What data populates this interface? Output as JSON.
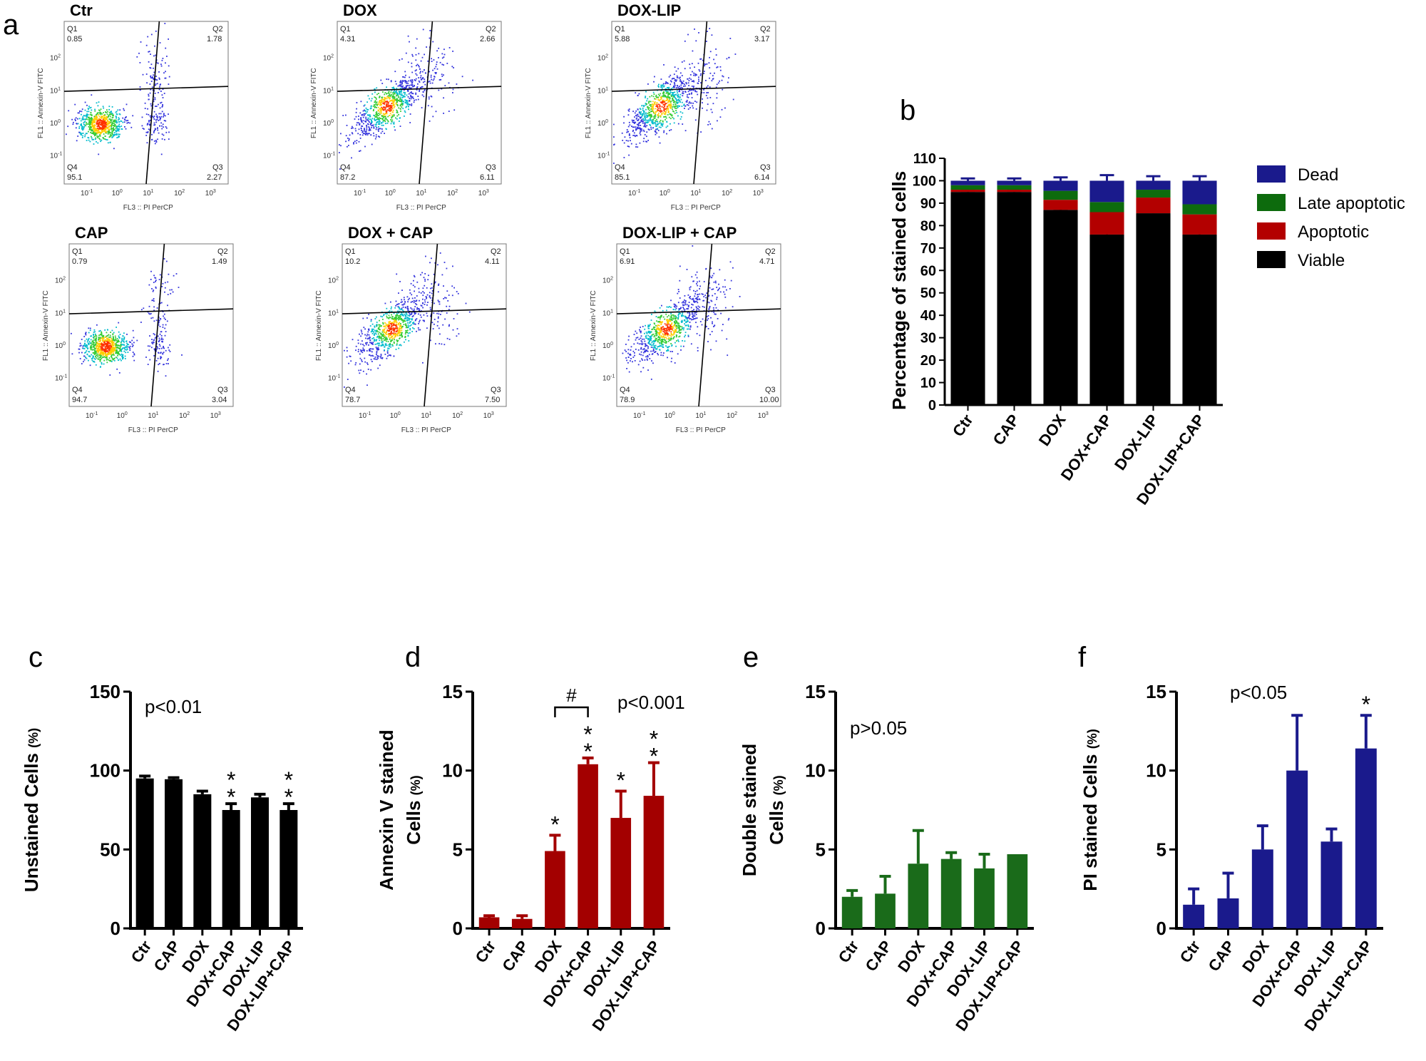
{
  "panel_letters": {
    "a": "a",
    "b": "b",
    "c": "c",
    "d": "d",
    "e": "e",
    "f": "f"
  },
  "flow_common": {
    "x_axis_label": "FL3 :: PI PerCP",
    "y_axis_label": "FL1 :: Annexin-V FITC",
    "x_ticks": [
      "10-1",
      "100",
      "101",
      "102",
      "103"
    ],
    "y_ticks": [
      "102",
      "101",
      "100",
      "10-1"
    ]
  },
  "flow_panels": [
    {
      "title": "Ctr",
      "q1_label": "Q1",
      "q1": "0.85",
      "q2_label": "Q2",
      "q2": "1.78",
      "q3_label": "Q3",
      "q3": "2.27",
      "q4_label": "Q4",
      "q4": "95.1",
      "pattern": "control"
    },
    {
      "title": "DOX",
      "q1_label": "Q1",
      "q1": "4.31",
      "q2_label": "Q2",
      "q2": "2.66",
      "q3_label": "Q3",
      "q3": "6.11",
      "q4_label": "Q4",
      "q4": "87.2",
      "pattern": "treated"
    },
    {
      "title": "DOX-LIP",
      "q1_label": "Q1",
      "q1": "5.88",
      "q2_label": "Q2",
      "q2": "3.17",
      "q3_label": "Q3",
      "q3": "6.14",
      "q4_label": "Q4",
      "q4": "85.1",
      "pattern": "treated"
    },
    {
      "title": "CAP",
      "q1_label": "Q1",
      "q1": "0.79",
      "q2_label": "Q2",
      "q2": "1.49",
      "q3_label": "Q3",
      "q3": "3.04",
      "q4_label": "Q4",
      "q4": "94.7",
      "pattern": "control"
    },
    {
      "title": "DOX + CAP",
      "q1_label": "Q1",
      "q1": "10.2",
      "q2_label": "Q2",
      "q2": "4.11",
      "q3_label": "Q3",
      "q3": "7.50",
      "q4_label": "Q4",
      "q4": "78.7",
      "pattern": "treated"
    },
    {
      "title": "DOX-LIP + CAP",
      "q1_label": "Q1",
      "q1": "6.91",
      "q2_label": "Q2",
      "q2": "4.71",
      "q3_label": "Q3",
      "q3": "10.00",
      "q4_label": "Q4",
      "q4": "78.9",
      "pattern": "treated"
    }
  ],
  "colors": {
    "dead": "#1a1a8c",
    "late": "#0d6b0d",
    "apoptotic": "#b30000",
    "viable": "#000000",
    "annexin": "#a30000",
    "double": "#1a6b1a",
    "pi": "#1a1a8c",
    "unstained": "#000000"
  },
  "chart_data": [
    {
      "id": "b",
      "type": "bar",
      "stacked": true,
      "ylabel": "Percentage of stained cells",
      "ylim": [
        0,
        110
      ],
      "yticks": [
        0,
        10,
        20,
        30,
        40,
        50,
        60,
        70,
        80,
        90,
        100,
        110
      ],
      "categories": [
        "Ctr",
        "CAP",
        "DOX",
        "DOX+CAP",
        "DOX-LIP",
        "DOX-LIP+CAP"
      ],
      "series": [
        {
          "name": "Viable",
          "values": [
            95,
            95,
            87,
            76,
            85.5,
            76
          ],
          "err": [
            0.5,
            0.5,
            0.5,
            2.5,
            0.5,
            2.5
          ]
        },
        {
          "name": "Apoptotic",
          "values": [
            1,
            1,
            4.5,
            10,
            7,
            9
          ],
          "err": [
            0,
            0,
            0,
            0,
            0,
            0
          ]
        },
        {
          "name": "Late apoptotic",
          "values": [
            2,
            2,
            4,
            4.5,
            3.5,
            4.5
          ],
          "err": [
            0,
            0,
            0,
            0,
            0,
            0
          ]
        },
        {
          "name": "Dead",
          "values": [
            2,
            2,
            4.5,
            9.5,
            4,
            10.5
          ],
          "err": [
            1,
            1,
            1.5,
            2.5,
            2,
            2
          ]
        }
      ],
      "legend_order": [
        "Dead",
        "Late apoptotic",
        "Apoptotic",
        "Viable"
      ],
      "legend_position": "right"
    },
    {
      "id": "c",
      "type": "bar",
      "ylabel_main": "Unstained Cells",
      "ylabel_unit": "(%)",
      "ylim": [
        0,
        150
      ],
      "yticks": [
        0,
        50,
        100,
        150
      ],
      "categories": [
        "Ctr",
        "CAP",
        "DOX",
        "DOX+CAP",
        "DOX-LIP",
        "DOX-LIP+CAP"
      ],
      "values": [
        95,
        94.5,
        85,
        75,
        83,
        75
      ],
      "err": [
        1.5,
        1,
        2,
        4,
        2,
        4
      ],
      "stars": [
        "",
        "",
        "",
        "**",
        "",
        "**"
      ],
      "annotation": "p<0.01"
    },
    {
      "id": "d",
      "type": "bar",
      "ylabel_main": "Annexin V stained",
      "ylabel_line2": "Cells",
      "ylabel_unit": "(%)",
      "ylim": [
        0,
        15
      ],
      "yticks": [
        0,
        5,
        10,
        15
      ],
      "categories": [
        "Ctr",
        "CAP",
        "DOX",
        "DOX+CAP",
        "DOX-LIP",
        "DOX-LIP+CAP"
      ],
      "values": [
        0.7,
        0.6,
        4.9,
        10.4,
        7.0,
        8.4
      ],
      "err": [
        0.1,
        0.2,
        1.0,
        0.4,
        1.7,
        2.1
      ],
      "stars": [
        "",
        "",
        "*",
        "**",
        "*",
        "**"
      ],
      "bracket_label": "#",
      "bracket_between": [
        2,
        3
      ],
      "annotation": "p<0.001"
    },
    {
      "id": "e",
      "type": "bar",
      "ylabel_main": "Double  stained",
      "ylabel_line2": "Cells",
      "ylabel_unit": "(%)",
      "ylim": [
        0,
        15
      ],
      "yticks": [
        0,
        5,
        10,
        15
      ],
      "categories": [
        "Ctr",
        "CAP",
        "DOX",
        "DOX+CAP",
        "DOX-LIP",
        "DOX-LIP+CAP"
      ],
      "values": [
        2.0,
        2.2,
        4.1,
        4.4,
        3.8,
        4.7
      ],
      "err": [
        0.4,
        1.1,
        2.1,
        0.4,
        0.9,
        0
      ],
      "stars": [
        "",
        "",
        "",
        "",
        "",
        ""
      ],
      "annotation": "p>0.05"
    },
    {
      "id": "f",
      "type": "bar",
      "ylabel_main": "PI stained Cells",
      "ylabel_unit": "(%)",
      "ylim": [
        0,
        15
      ],
      "yticks": [
        0,
        5,
        10,
        15
      ],
      "categories": [
        "Ctr",
        "CAP",
        "DOX",
        "DOX+CAP",
        "DOX-LIP",
        "DOX-LIP+CAP"
      ],
      "values": [
        1.5,
        1.9,
        5.0,
        10.0,
        5.5,
        11.4
      ],
      "err": [
        1.0,
        1.6,
        1.5,
        3.5,
        0.8,
        2.1
      ],
      "stars": [
        "",
        "",
        "",
        "",
        "",
        "*"
      ],
      "annotation": "p<0.05"
    }
  ]
}
